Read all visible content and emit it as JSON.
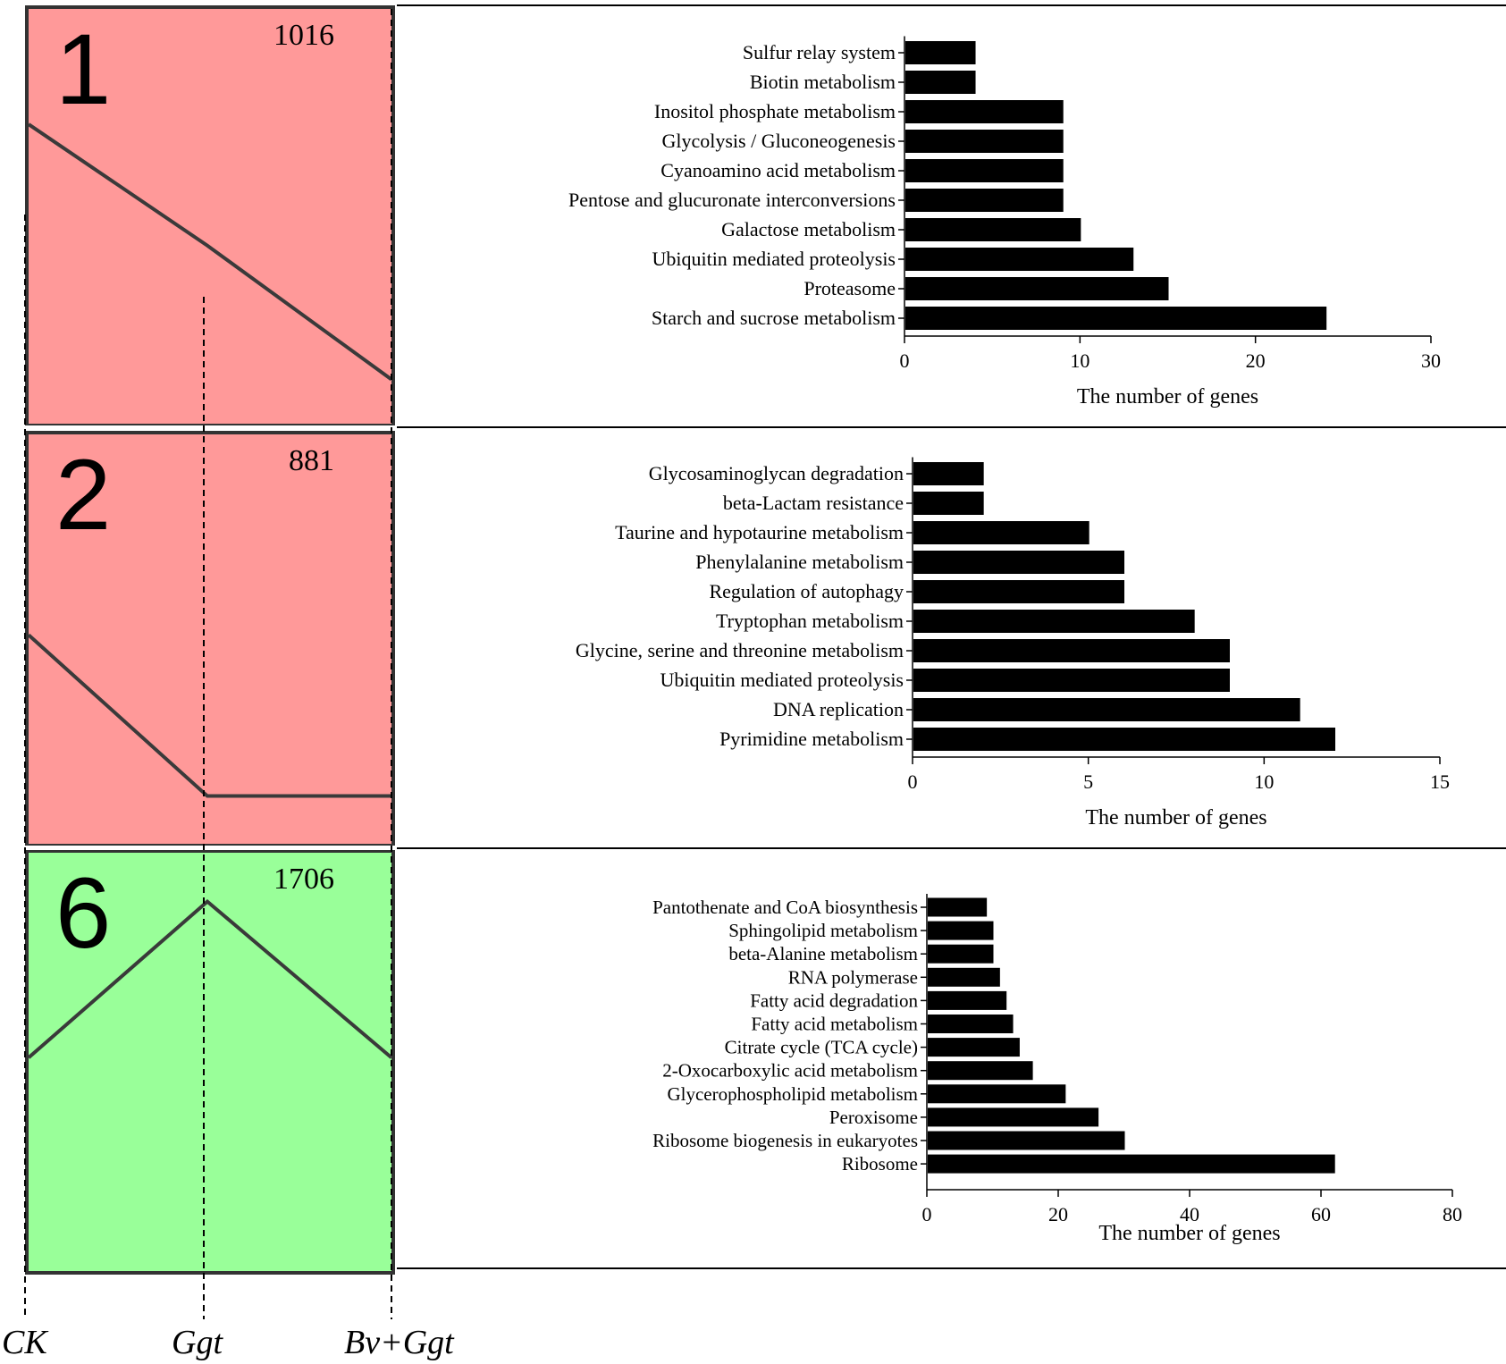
{
  "figure": {
    "x_conditions": [
      "CK",
      "Ggt",
      "Bv+Ggt"
    ],
    "colors": {
      "red_panel": "#ff9999",
      "green_panel": "#99ff99",
      "bar": "#000000",
      "trend_line": "#3a3a3a"
    }
  },
  "profiles": [
    {
      "id": "1",
      "count": "1016",
      "color": "#ff9999",
      "trend": [
        0.28,
        0.57,
        0.89
      ]
    },
    {
      "id": "2",
      "count": "881",
      "color": "#ff9999",
      "trend": [
        0.49,
        0.88,
        0.88
      ]
    },
    {
      "id": "6",
      "count": "1706",
      "color": "#99ff99",
      "trend": [
        0.49,
        0.12,
        0.49
      ]
    }
  ],
  "chart_data": [
    {
      "type": "bar",
      "orientation": "horizontal",
      "profile": "1",
      "categories": [
        "Sulfur relay system",
        "Biotin metabolism",
        "Inositol phosphate metabolism",
        "Glycolysis / Gluconeogenesis",
        "Cyanoamino acid metabolism",
        "Pentose and glucuronate interconversions",
        "Galactose metabolism",
        "Ubiquitin mediated proteolysis",
        "Proteasome",
        "Starch and sucrose metabolism"
      ],
      "values": [
        4,
        4,
        9,
        9,
        9,
        9,
        10,
        13,
        15,
        24
      ],
      "xlabel": "The number of genes",
      "xlim": [
        0,
        30
      ],
      "xticks": [
        "0",
        "10",
        "20",
        "30"
      ]
    },
    {
      "type": "bar",
      "orientation": "horizontal",
      "profile": "2",
      "categories": [
        "Glycosaminoglycan degradation",
        "beta-Lactam resistance",
        "Taurine and hypotaurine metabolism",
        "Phenylalanine metabolism",
        "Regulation of autophagy",
        "Tryptophan metabolism",
        "Glycine, serine and threonine metabolism",
        "Ubiquitin mediated proteolysis",
        "DNA replication",
        "Pyrimidine metabolism"
      ],
      "values": [
        2,
        2,
        5,
        6,
        6,
        8,
        9,
        9,
        11,
        12
      ],
      "xlabel": "The number of genes",
      "xlim": [
        0,
        15
      ],
      "xticks": [
        "0",
        "5",
        "10",
        "15"
      ]
    },
    {
      "type": "bar",
      "orientation": "horizontal",
      "profile": "6",
      "categories": [
        "Pantothenate and CoA biosynthesis",
        "Sphingolipid metabolism",
        "beta-Alanine metabolism",
        "RNA polymerase",
        "Fatty acid degradation",
        "Fatty acid metabolism",
        "Citrate cycle (TCA cycle)",
        "2-Oxocarboxylic acid metabolism",
        "Glycerophospholipid metabolism",
        "Peroxisome",
        "Ribosome biogenesis in eukaryotes",
        "Ribosome"
      ],
      "values": [
        9,
        10,
        10,
        11,
        12,
        13,
        14,
        16,
        21,
        26,
        30,
        62
      ],
      "xlabel": "The number of genes",
      "xlim": [
        0,
        80
      ],
      "xticks": [
        "0",
        "20",
        "40",
        "60",
        "80"
      ]
    }
  ]
}
